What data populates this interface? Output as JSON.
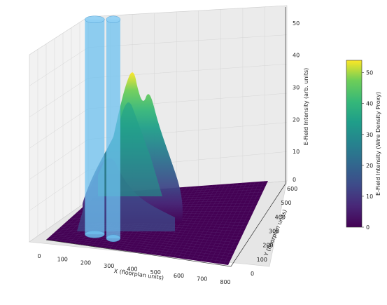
{
  "chart_data": {
    "type": "surface3d",
    "xlabel": "X (floorplan units)",
    "ylabel": "Y (floorplan units)",
    "zlabel": "E-Field Intensity (arb. units)",
    "xlim": [
      0,
      800
    ],
    "ylim": [
      0,
      600
    ],
    "zlim": [
      0,
      55
    ],
    "x_ticks": [
      "0",
      "100",
      "200",
      "300",
      "400",
      "500",
      "600",
      "700",
      "800"
    ],
    "y_ticks": [
      "0",
      "100",
      "200",
      "300",
      "400",
      "500",
      "600"
    ],
    "z_ticks": [
      "0",
      "10",
      "20",
      "30",
      "40",
      "50"
    ],
    "colormap": "viridis",
    "colorbar": {
      "label": "E-Field Intensity (Wire Density Proxy)",
      "ticks": [
        "0",
        "10",
        "20",
        "30",
        "40",
        "50"
      ],
      "range": [
        0,
        54
      ]
    },
    "peaks": [
      {
        "x": 370,
        "y": 300,
        "z": 52
      },
      {
        "x": 480,
        "y": 380,
        "z": 47
      },
      {
        "x": 350,
        "y": 150,
        "z": 31
      },
      {
        "x": 520,
        "y": 260,
        "z": 24
      }
    ],
    "cylinders": [
      {
        "x": 170,
        "y": 120,
        "height": 52,
        "color": "#6ec1f0"
      },
      {
        "x": 260,
        "y": 100,
        "height": 52,
        "color": "#6ec1f0"
      }
    ],
    "grid": true
  }
}
